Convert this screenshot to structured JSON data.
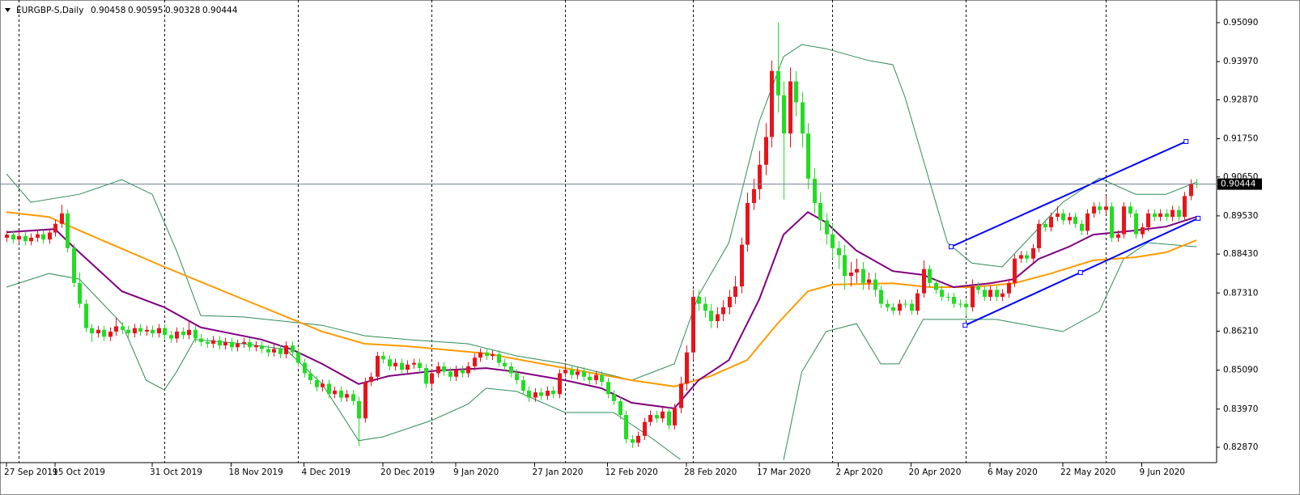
{
  "chart_data": {
    "type": "candlestick",
    "title": "EURGBP-S,Daily",
    "up_color": "#e8141c",
    "down_color": "#22dd22",
    "xlim": [
      -1.07,
      199.2
    ],
    "ylim": [
      0.82428,
      0.95742
    ],
    "yticks": [
      {
        "value": 0.9509,
        "label": "0.95090"
      },
      {
        "value": 0.9397,
        "label": "0.93970"
      },
      {
        "value": 0.9287,
        "label": "0.92870"
      },
      {
        "value": 0.9175,
        "label": "0.91750"
      },
      {
        "value": 0.9065,
        "label": "0.90650"
      },
      {
        "value": 0.8953,
        "label": "0.89530"
      },
      {
        "value": 0.8843,
        "label": "0.88430"
      },
      {
        "value": 0.8731,
        "label": "0.87310"
      },
      {
        "value": 0.8621,
        "label": "0.86210"
      },
      {
        "value": 0.8509,
        "label": "0.85090"
      },
      {
        "value": 0.8397,
        "label": "0.83970"
      },
      {
        "value": 0.8287,
        "label": "0.82870"
      }
    ],
    "xticks": [
      {
        "value": 0,
        "label": "27 Sep 2019"
      },
      {
        "value": 8,
        "label": "15 Oct 2019"
      },
      {
        "value": 24,
        "label": "31 Oct 2019"
      },
      {
        "value": 37,
        "label": "18 Nov 2019"
      },
      {
        "value": 49,
        "label": "4 Dec 2019"
      },
      {
        "value": 62,
        "label": "20 Dec 2019"
      },
      {
        "value": 74,
        "label": "9 Jan 2020"
      },
      {
        "value": 87,
        "label": "27 Jan 2020"
      },
      {
        "value": 99,
        "label": "12 Feb 2020"
      },
      {
        "value": 112,
        "label": "28 Feb 2020"
      },
      {
        "value": 124,
        "label": "17 Mar 2020"
      },
      {
        "value": 137,
        "label": "2 Apr 2020"
      },
      {
        "value": 149,
        "label": "20 Apr 2020"
      },
      {
        "value": 162,
        "label": "6 May 2020"
      },
      {
        "value": 174,
        "label": "22 May 2020"
      },
      {
        "value": 187,
        "label": "9 Jun 2020"
      }
    ],
    "separators": [
      2,
      26,
      48,
      70,
      92,
      113,
      136,
      158,
      181
    ],
    "open": [
      0.889,
      0.8899,
      0.8885,
      0.8895,
      0.888,
      0.889,
      0.89,
      0.8885,
      0.8905,
      0.893,
      0.896,
      0.886,
      0.876,
      0.87,
      0.863,
      0.8615,
      0.8625,
      0.8605,
      0.862,
      0.8635,
      0.8625,
      0.8615,
      0.863,
      0.862,
      0.8625,
      0.8615,
      0.863,
      0.861,
      0.86,
      0.862,
      0.861,
      0.8625,
      0.86,
      0.859,
      0.8585,
      0.8595,
      0.858,
      0.859,
      0.8575,
      0.8585,
      0.859,
      0.8575,
      0.858,
      0.857,
      0.856,
      0.857,
      0.8555,
      0.858,
      0.856,
      0.853,
      0.85,
      0.848,
      0.846,
      0.847,
      0.844,
      0.845,
      0.843,
      0.844,
      0.842,
      0.837,
      0.8475,
      0.849,
      0.855,
      0.854,
      0.852,
      0.853,
      0.851,
      0.8525,
      0.853,
      0.8515,
      0.847,
      0.85,
      0.852,
      0.8505,
      0.849,
      0.851,
      0.85,
      0.852,
      0.8545,
      0.856,
      0.855,
      0.8555,
      0.853,
      0.852,
      0.85,
      0.848,
      0.845,
      0.843,
      0.8445,
      0.8435,
      0.845,
      0.844,
      0.85,
      0.851,
      0.8495,
      0.8505,
      0.849,
      0.848,
      0.8495,
      0.8475,
      0.844,
      0.842,
      0.838,
      0.831,
      0.83,
      0.832,
      0.836,
      0.838,
      0.837,
      0.839,
      0.835,
      0.84,
      0.847,
      0.856,
      0.872,
      0.87,
      0.868,
      0.865,
      0.867,
      0.869,
      0.872,
      0.875,
      0.887,
      0.899,
      0.903,
      0.91,
      0.918,
      0.937,
      0.93,
      0.919,
      0.934,
      0.928,
      0.919,
      0.906,
      0.899,
      0.894,
      0.89,
      0.886,
      0.884,
      0.878,
      0.879,
      0.88,
      0.876,
      0.877,
      0.874,
      0.87,
      0.869,
      0.868,
      0.87,
      0.87,
      0.868,
      0.873,
      0.88,
      0.876,
      0.874,
      0.872,
      0.872,
      0.87,
      0.87,
      0.869,
      0.875,
      0.874,
      0.872,
      0.874,
      0.872,
      0.873,
      0.876,
      0.883,
      0.884,
      0.883,
      0.886,
      0.893,
      0.892,
      0.895,
      0.896,
      0.894,
      0.895,
      0.893,
      0.891,
      0.896,
      0.898,
      0.897,
      0.898,
      0.889,
      0.89,
      0.898,
      0.896,
      0.89,
      0.892,
      0.896,
      0.895,
      0.896,
      0.895,
      0.897,
      0.895,
      0.901,
      0.90458
    ],
    "high": [
      0.8911,
      0.8911,
      0.8907,
      0.8907,
      0.8902,
      0.8912,
      0.8912,
      0.8917,
      0.8942,
      0.8985,
      0.8972,
      0.8872,
      0.879,
      0.8712,
      0.8642,
      0.8637,
      0.8637,
      0.8632,
      0.866,
      0.8647,
      0.8637,
      0.8642,
      0.8642,
      0.8637,
      0.8637,
      0.8642,
      0.8642,
      0.8622,
      0.8632,
      0.8632,
      0.865,
      0.8637,
      0.8612,
      0.8602,
      0.8607,
      0.8607,
      0.8602,
      0.8602,
      0.8597,
      0.8602,
      0.8602,
      0.8592,
      0.8592,
      0.8582,
      0.8582,
      0.8582,
      0.8592,
      0.8592,
      0.8572,
      0.8542,
      0.8512,
      0.8492,
      0.8482,
      0.8482,
      0.8462,
      0.8462,
      0.8452,
      0.8452,
      0.8432,
      0.8487,
      0.8502,
      0.8562,
      0.8562,
      0.8552,
      0.8542,
      0.8542,
      0.8537,
      0.8542,
      0.8542,
      0.8527,
      0.8512,
      0.8532,
      0.8532,
      0.8517,
      0.8522,
      0.8522,
      0.8532,
      0.8557,
      0.8572,
      0.8572,
      0.8567,
      0.8567,
      0.8542,
      0.8532,
      0.8512,
      0.8492,
      0.8462,
      0.8457,
      0.8457,
      0.8462,
      0.8462,
      0.8512,
      0.853,
      0.8522,
      0.8517,
      0.8517,
      0.8502,
      0.8507,
      0.8507,
      0.8487,
      0.8452,
      0.8432,
      0.8392,
      0.8322,
      0.8332,
      0.8372,
      0.8392,
      0.8392,
      0.8402,
      0.8402,
      0.8412,
      0.849,
      0.858,
      0.874,
      0.874,
      0.872,
      0.87,
      0.869,
      0.871,
      0.874,
      0.878,
      0.889,
      0.902,
      0.906,
      0.914,
      0.922,
      0.94,
      0.951,
      0.934,
      0.938,
      0.937,
      0.931,
      0.922,
      0.909,
      0.902,
      0.896,
      0.893,
      0.888,
      0.887,
      0.882,
      0.883,
      0.882,
      0.879,
      0.879,
      0.8752,
      0.8712,
      0.8702,
      0.8712,
      0.8712,
      0.8712,
      0.8742,
      0.8825,
      0.8812,
      0.8772,
      0.8752,
      0.8732,
      0.8732,
      0.8712,
      0.8712,
      0.877,
      0.8762,
      0.8752,
      0.8752,
      0.8752,
      0.8742,
      0.8772,
      0.8842,
      0.8852,
      0.8852,
      0.8872,
      0.8942,
      0.8942,
      0.8962,
      0.898,
      0.8972,
      0.8962,
      0.8962,
      0.8942,
      0.8972,
      0.8992,
      0.8992,
      0.901,
      0.8992,
      0.8912,
      0.8992,
      0.8992,
      0.8972,
      0.8932,
      0.8972,
      0.8972,
      0.8972,
      0.8972,
      0.8982,
      0.8982,
      0.9022,
      0.9058,
      0.90595
    ],
    "low": [
      0.8878,
      0.8873,
      0.8873,
      0.8868,
      0.8868,
      0.8878,
      0.8873,
      0.8873,
      0.8893,
      0.8918,
      0.8848,
      0.8748,
      0.8688,
      0.8618,
      0.859,
      0.8603,
      0.8593,
      0.8593,
      0.8608,
      0.8613,
      0.8603,
      0.8603,
      0.8608,
      0.8608,
      0.8603,
      0.8603,
      0.8598,
      0.8588,
      0.8588,
      0.8598,
      0.8598,
      0.8588,
      0.8578,
      0.8573,
      0.8573,
      0.8568,
      0.8568,
      0.8563,
      0.8563,
      0.8573,
      0.8563,
      0.8563,
      0.8558,
      0.8548,
      0.8548,
      0.8543,
      0.8543,
      0.8548,
      0.8518,
      0.8488,
      0.8468,
      0.8448,
      0.8448,
      0.8428,
      0.8428,
      0.8418,
      0.8418,
      0.8408,
      0.829,
      0.8358,
      0.8463,
      0.8478,
      0.8528,
      0.8508,
      0.8508,
      0.8498,
      0.8498,
      0.8513,
      0.8503,
      0.8458,
      0.8458,
      0.8488,
      0.8493,
      0.8478,
      0.8478,
      0.8488,
      0.8488,
      0.8508,
      0.8533,
      0.8538,
      0.8538,
      0.8518,
      0.8508,
      0.8488,
      0.8468,
      0.8438,
      0.8418,
      0.8418,
      0.8423,
      0.8423,
      0.8428,
      0.8428,
      0.8488,
      0.8483,
      0.8483,
      0.8478,
      0.8468,
      0.8468,
      0.8463,
      0.8428,
      0.8408,
      0.8368,
      0.8298,
      0.8285,
      0.8288,
      0.8308,
      0.8348,
      0.8358,
      0.8358,
      0.8338,
      0.8338,
      0.8385,
      0.845,
      0.854,
      0.868,
      0.866,
      0.863,
      0.863,
      0.865,
      0.867,
      0.87,
      0.873,
      0.885,
      0.897,
      0.9,
      0.907,
      0.915,
      0.925,
      0.9,
      0.915,
      0.924,
      0.915,
      0.903,
      0.896,
      0.891,
      0.887,
      0.883,
      0.88,
      0.874,
      0.875,
      0.876,
      0.874,
      0.874,
      0.872,
      0.8688,
      0.8678,
      0.8668,
      0.8668,
      0.8688,
      0.8668,
      0.8668,
      0.8718,
      0.8748,
      0.8728,
      0.8708,
      0.8708,
      0.8688,
      0.8688,
      0.8665,
      0.8678,
      0.8728,
      0.8708,
      0.8708,
      0.8708,
      0.8708,
      0.8718,
      0.8748,
      0.8818,
      0.8818,
      0.8818,
      0.8848,
      0.8908,
      0.8908,
      0.8938,
      0.8928,
      0.8928,
      0.8918,
      0.8898,
      0.8898,
      0.8948,
      0.8958,
      0.8958,
      0.8878,
      0.8878,
      0.8888,
      0.8948,
      0.8888,
      0.8888,
      0.8908,
      0.8938,
      0.8938,
      0.8938,
      0.8938,
      0.8938,
      0.8938,
      0.8998,
      0.90328
    ],
    "close": [
      0.8899,
      0.8885,
      0.8895,
      0.888,
      0.889,
      0.89,
      0.8885,
      0.8905,
      0.893,
      0.896,
      0.886,
      0.876,
      0.87,
      0.863,
      0.8615,
      0.8625,
      0.8605,
      0.862,
      0.8635,
      0.8625,
      0.8615,
      0.863,
      0.862,
      0.8625,
      0.8615,
      0.863,
      0.861,
      0.86,
      0.862,
      0.861,
      0.8625,
      0.86,
      0.859,
      0.8585,
      0.8595,
      0.858,
      0.859,
      0.8575,
      0.8585,
      0.859,
      0.8575,
      0.858,
      0.857,
      0.856,
      0.857,
      0.8555,
      0.858,
      0.856,
      0.853,
      0.85,
      0.848,
      0.846,
      0.847,
      0.844,
      0.845,
      0.843,
      0.844,
      0.842,
      0.837,
      0.8475,
      0.849,
      0.855,
      0.854,
      0.852,
      0.853,
      0.851,
      0.8525,
      0.853,
      0.8515,
      0.847,
      0.85,
      0.852,
      0.8505,
      0.849,
      0.851,
      0.85,
      0.852,
      0.8545,
      0.856,
      0.855,
      0.8555,
      0.853,
      0.852,
      0.85,
      0.848,
      0.845,
      0.843,
      0.8445,
      0.8435,
      0.845,
      0.844,
      0.85,
      0.851,
      0.8495,
      0.8505,
      0.849,
      0.848,
      0.8495,
      0.8475,
      0.844,
      0.842,
      0.838,
      0.831,
      0.83,
      0.832,
      0.836,
      0.838,
      0.837,
      0.839,
      0.835,
      0.84,
      0.847,
      0.856,
      0.872,
      0.87,
      0.868,
      0.865,
      0.867,
      0.869,
      0.872,
      0.875,
      0.887,
      0.899,
      0.903,
      0.91,
      0.918,
      0.937,
      0.93,
      0.919,
      0.934,
      0.928,
      0.919,
      0.906,
      0.899,
      0.894,
      0.89,
      0.886,
      0.884,
      0.878,
      0.879,
      0.88,
      0.876,
      0.877,
      0.874,
      0.87,
      0.869,
      0.868,
      0.87,
      0.87,
      0.868,
      0.873,
      0.88,
      0.876,
      0.874,
      0.872,
      0.872,
      0.87,
      0.87,
      0.869,
      0.875,
      0.874,
      0.872,
      0.874,
      0.872,
      0.873,
      0.876,
      0.883,
      0.884,
      0.883,
      0.886,
      0.893,
      0.892,
      0.895,
      0.896,
      0.894,
      0.895,
      0.893,
      0.891,
      0.896,
      0.898,
      0.897,
      0.898,
      0.889,
      0.89,
      0.898,
      0.896,
      0.89,
      0.892,
      0.896,
      0.895,
      0.896,
      0.895,
      0.897,
      0.895,
      0.901,
      0.90458,
      0.90444
    ],
    "overlays": [
      {
        "color": "#2e8b57",
        "x": [
          0,
          4,
          12,
          19,
          24,
          28,
          32,
          39,
          52,
          59,
          66,
          76,
          84,
          92,
          103,
          110,
          114,
          119,
          124,
          128,
          131,
          135,
          142,
          146,
          148,
          155,
          159,
          164,
          169,
          174,
          180,
          186,
          191,
          196
        ],
        "values": [
          0.9074,
          0.8992,
          0.9015,
          0.9057,
          0.9015,
          0.8853,
          0.8666,
          0.8662,
          0.8638,
          0.8608,
          0.8597,
          0.8585,
          0.855,
          0.8527,
          0.848,
          0.8527,
          0.8724,
          0.8876,
          0.9225,
          0.9411,
          0.9446,
          0.9434,
          0.94,
          0.9388,
          0.9295,
          0.8876,
          0.8817,
          0.8806,
          0.8899,
          0.8992,
          0.9062,
          0.9015,
          0.9015,
          0.905
        ]
      },
      {
        "color": "#2e8b57",
        "x": [
          0,
          7,
          12,
          19,
          23,
          26,
          28,
          31,
          39,
          46,
          52,
          58,
          62,
          70,
          76,
          79,
          84,
          92,
          100,
          106,
          111,
          112,
          128,
          131,
          135,
          140,
          144,
          147,
          151,
          163,
          174,
          180,
          184,
          188,
          196
        ],
        "values": [
          0.8748,
          0.8787,
          0.8771,
          0.8643,
          0.848,
          0.8452,
          0.8504,
          0.8597,
          0.8585,
          0.8569,
          0.8469,
          0.8306,
          0.8317,
          0.8364,
          0.8411,
          0.8457,
          0.8448,
          0.8387,
          0.8387,
          0.8317,
          0.8252,
          null,
          0.825,
          0.8504,
          0.862,
          0.8643,
          0.8527,
          0.8527,
          0.8655,
          0.8655,
          0.862,
          0.8678,
          0.8829,
          0.8876,
          0.8864
        ]
      },
      {
        "color": "#ff9a00",
        "x": [
          0,
          7,
          12,
          26,
          39,
          52,
          59,
          66,
          79,
          92,
          103,
          110,
          116,
          122,
          127,
          132,
          136,
          146,
          152,
          159,
          166,
          172,
          179,
          186,
          191,
          196
        ],
        "values": [
          0.8964,
          0.895,
          0.8911,
          0.8806,
          0.8713,
          0.862,
          0.8585,
          0.8578,
          0.8557,
          0.8515,
          0.848,
          0.8462,
          0.8492,
          0.8538,
          0.8643,
          0.8736,
          0.8755,
          0.8759,
          0.8748,
          0.8748,
          0.8759,
          0.8787,
          0.8825,
          0.8834,
          0.8848,
          0.8883
        ]
      },
      {
        "color": "#800080",
        "x": [
          0,
          8,
          11,
          19,
          26,
          32,
          42,
          47,
          52,
          58,
          63,
          71,
          79,
          84,
          92,
          98,
          103,
          110,
          114,
          119,
          124,
          128,
          132,
          135,
          140,
          146,
          151,
          156,
          162,
          166,
          170,
          175,
          179,
          186,
          191,
          196
        ],
        "values": [
          0.8906,
          0.8915,
          0.8864,
          0.8736,
          0.869,
          0.8632,
          0.8597,
          0.8569,
          0.8527,
          0.8469,
          0.8492,
          0.8508,
          0.8515,
          0.8504,
          0.848,
          0.8457,
          0.8415,
          0.8399,
          0.848,
          0.8538,
          0.8713,
          0.8899,
          0.8964,
          0.8934,
          0.8853,
          0.8794,
          0.8783,
          0.8748,
          0.8759,
          0.8771,
          0.8829,
          0.8864,
          0.8899,
          0.8911,
          0.8922,
          0.895
        ]
      }
    ],
    "trendlines": [
      {
        "color": "#0000ff",
        "x": [
          155.6,
          194.3
        ],
        "values": [
          0.8864,
          0.9167
        ]
      },
      {
        "color": "#0000ff",
        "x": [
          157.9,
          176.9,
          196.3
        ],
        "values": [
          0.8638,
          0.879,
          0.8946
        ]
      }
    ]
  }
}
